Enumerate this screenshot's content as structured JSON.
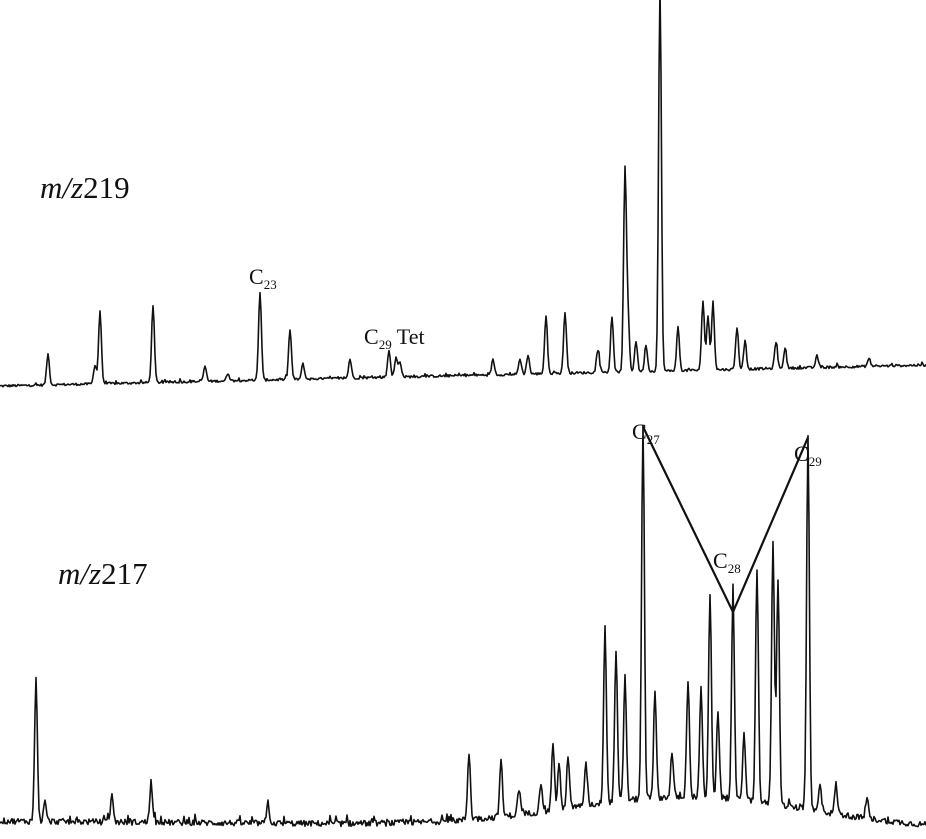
{
  "chart_data": [
    {
      "type": "line",
      "title": "",
      "trace_label_italic": "m/z",
      "trace_label_number": "219",
      "x": "retention time (unscaled)",
      "xlim": [
        0,
        926
      ],
      "ylim": [
        0,
        1
      ],
      "peaks": [
        [
          48,
          0.08
        ],
        [
          95,
          0.05
        ],
        [
          100,
          0.19
        ],
        [
          153,
          0.2
        ],
        [
          205,
          0.04
        ],
        [
          228,
          0.02
        ],
        [
          260,
          0.23
        ],
        [
          290,
          0.13
        ],
        [
          303,
          0.04
        ],
        [
          350,
          0.05
        ],
        [
          389,
          0.07
        ],
        [
          396,
          0.05
        ],
        [
          400,
          0.04
        ],
        [
          493,
          0.04
        ],
        [
          520,
          0.04
        ],
        [
          528,
          0.05
        ],
        [
          546,
          0.15
        ],
        [
          565,
          0.16
        ],
        [
          598,
          0.06
        ],
        [
          612,
          0.14
        ],
        [
          625,
          0.52
        ],
        [
          628,
          0.14
        ],
        [
          636,
          0.08
        ],
        [
          646,
          0.07
        ],
        [
          660,
          1.0
        ],
        [
          678,
          0.11
        ],
        [
          703,
          0.18
        ],
        [
          708,
          0.14
        ],
        [
          713,
          0.17
        ],
        [
          737,
          0.11
        ],
        [
          745,
          0.07
        ],
        [
          776,
          0.07
        ],
        [
          785,
          0.05
        ],
        [
          817,
          0.03
        ],
        [
          869,
          0.02
        ]
      ],
      "annotations": [
        {
          "main": "C",
          "sub": "23",
          "suffix": ""
        },
        {
          "main": "C",
          "sub": "29",
          "suffix": " Tet"
        }
      ]
    },
    {
      "type": "line",
      "title": "",
      "trace_label_italic": "m/z",
      "trace_label_number": "217",
      "x": "retention time (unscaled)",
      "xlim": [
        0,
        926
      ],
      "ylim": [
        0,
        1
      ],
      "peaks": [
        [
          36,
          0.38
        ],
        [
          45,
          0.05
        ],
        [
          112,
          0.07
        ],
        [
          151,
          0.1
        ],
        [
          268,
          0.05
        ],
        [
          469,
          0.18
        ],
        [
          501,
          0.15
        ],
        [
          519,
          0.07
        ],
        [
          541,
          0.08
        ],
        [
          553,
          0.18
        ],
        [
          559,
          0.12
        ],
        [
          568,
          0.14
        ],
        [
          586,
          0.11
        ],
        [
          605,
          0.47
        ],
        [
          616,
          0.4
        ],
        [
          625,
          0.33
        ],
        [
          643,
          1.0
        ],
        [
          655,
          0.28
        ],
        [
          672,
          0.12
        ],
        [
          688,
          0.31
        ],
        [
          701,
          0.29
        ],
        [
          710,
          0.55
        ],
        [
          718,
          0.23
        ],
        [
          733,
          0.55
        ],
        [
          744,
          0.18
        ],
        [
          757,
          0.63
        ],
        [
          773,
          0.71
        ],
        [
          778,
          0.61
        ],
        [
          808,
          1.0
        ],
        [
          820,
          0.07
        ],
        [
          836,
          0.08
        ],
        [
          867,
          0.05
        ]
      ],
      "annotations": [
        {
          "main": "C",
          "sub": "27",
          "suffix": ""
        },
        {
          "main": "C",
          "sub": "28",
          "suffix": ""
        },
        {
          "main": "C",
          "sub": "29",
          "suffix": ""
        }
      ],
      "connected_peaks": [
        "C27",
        "C28",
        "C29"
      ]
    }
  ]
}
